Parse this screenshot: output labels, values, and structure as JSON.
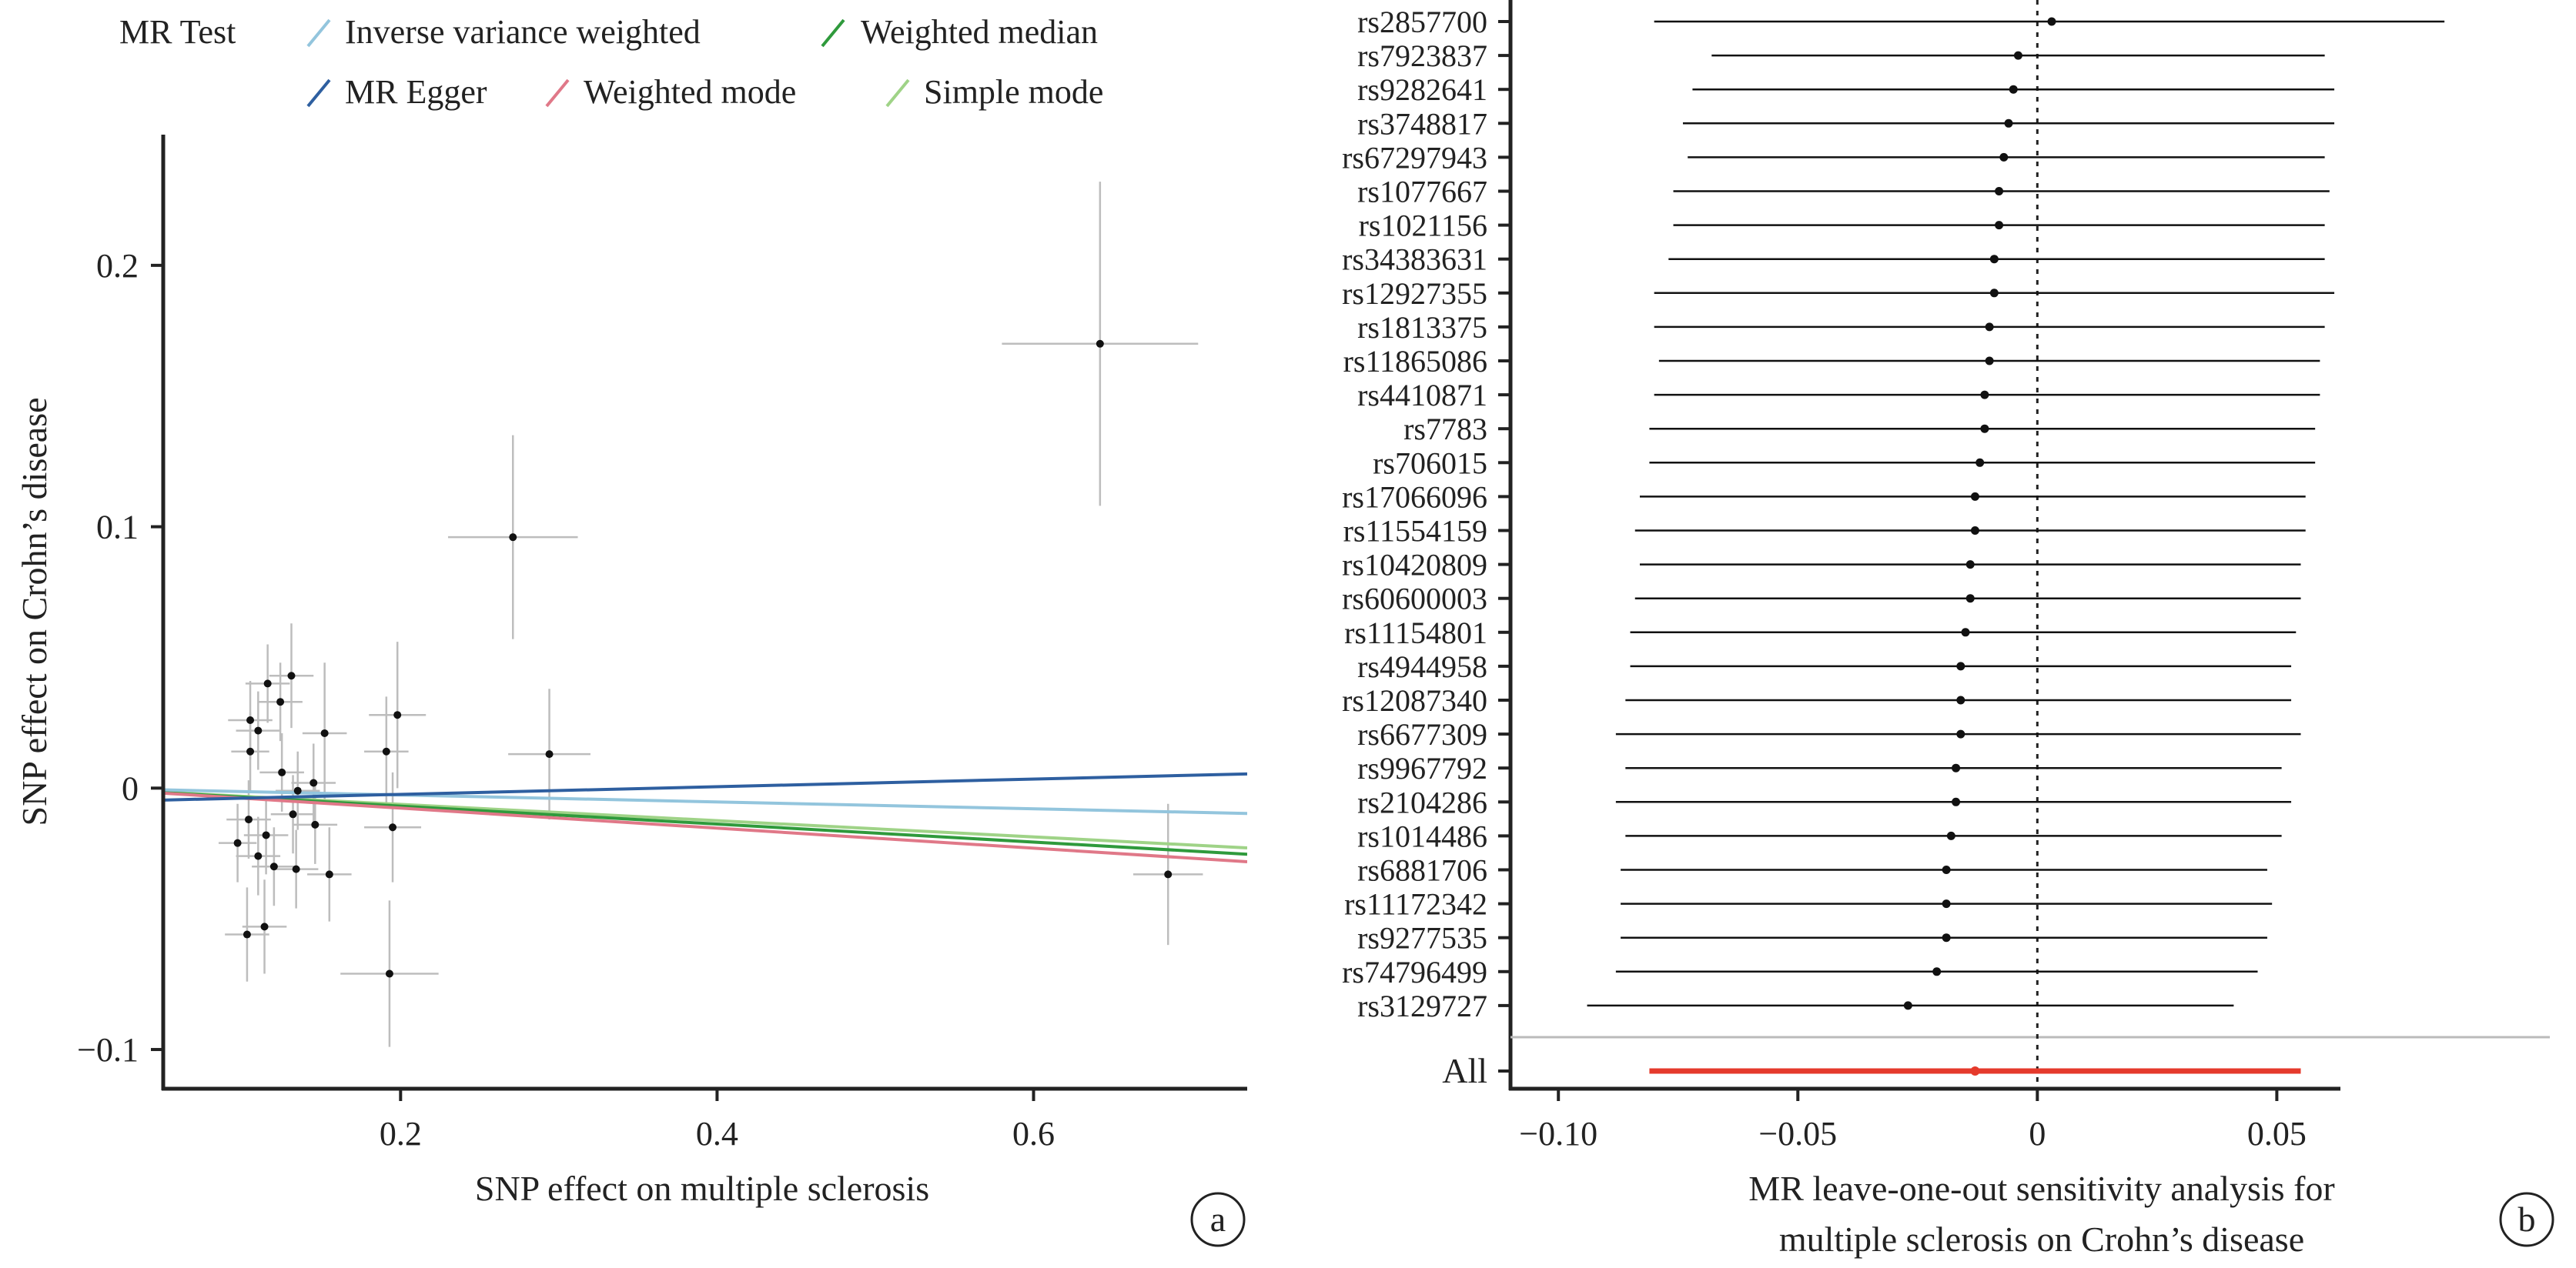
{
  "colors": {
    "ivw": "#93c5dd",
    "egger": "#2e5fa0",
    "wmedian": "#2f9a3c",
    "wmode": "#e07888",
    "smode": "#9fd387",
    "point": "#111111",
    "errorbar": "#bdbdbd",
    "all_line": "#e53a2c"
  },
  "panel_a": {
    "letter": "a",
    "legend": {
      "title": "MR Test",
      "items": [
        {
          "key": "ivw",
          "label": "Inverse variance weighted"
        },
        {
          "key": "wmedian",
          "label": "Weighted median"
        },
        {
          "key": "egger",
          "label": "MR Egger"
        },
        {
          "key": "wmode",
          "label": "Weighted mode"
        },
        {
          "key": "smode",
          "label": "Simple mode"
        }
      ]
    },
    "xlabel": "SNP effect on multiple sclerosis",
    "ylabel": "SNP effect on Crohn’s disease",
    "xticks": [
      "0.2",
      "0.4",
      "0.6"
    ],
    "yticks": [
      "−0.1",
      "0",
      "0.1",
      "0.2"
    ]
  },
  "panel_b": {
    "letter": "b",
    "xlabel_line1": "MR leave-one-out sensitivity analysis for",
    "xlabel_line2": "multiple sclerosis on Crohn’s disease",
    "xticks": [
      "−0.10",
      "−0.05",
      "0",
      "0.05"
    ],
    "all_label": "All"
  },
  "chart_data": [
    {
      "type": "scatter",
      "xlim": [
        0.05,
        0.735
      ],
      "ylim": [
        -0.115,
        0.25
      ],
      "x_ticks": [
        0.2,
        0.4,
        0.6
      ],
      "y_ticks": [
        -0.1,
        0,
        0.1,
        0.2
      ],
      "points": [
        {
          "x": 0.642,
          "y": 0.17,
          "xse": 0.062,
          "yse": 0.062
        },
        {
          "x": 0.685,
          "y": -0.033,
          "xse": 0.022,
          "yse": 0.027
        },
        {
          "x": 0.271,
          "y": 0.096,
          "xse": 0.041,
          "yse": 0.039
        },
        {
          "x": 0.294,
          "y": 0.013,
          "xse": 0.026,
          "yse": 0.025
        },
        {
          "x": 0.193,
          "y": -0.071,
          "xse": 0.031,
          "yse": 0.028
        },
        {
          "x": 0.198,
          "y": 0.028,
          "xse": 0.018,
          "yse": 0.028
        },
        {
          "x": 0.191,
          "y": 0.014,
          "xse": 0.014,
          "yse": 0.021
        },
        {
          "x": 0.195,
          "y": -0.015,
          "xse": 0.018,
          "yse": 0.021
        },
        {
          "x": 0.105,
          "y": 0.026,
          "xse": 0.014,
          "yse": 0.015
        },
        {
          "x": 0.116,
          "y": 0.04,
          "xse": 0.014,
          "yse": 0.015
        },
        {
          "x": 0.11,
          "y": 0.022,
          "xse": 0.014,
          "yse": 0.015
        },
        {
          "x": 0.105,
          "y": 0.014,
          "xse": 0.012,
          "yse": 0.015
        },
        {
          "x": 0.124,
          "y": 0.033,
          "xse": 0.014,
          "yse": 0.015
        },
        {
          "x": 0.131,
          "y": 0.043,
          "xse": 0.014,
          "yse": 0.02
        },
        {
          "x": 0.152,
          "y": 0.021,
          "xse": 0.014,
          "yse": 0.027
        },
        {
          "x": 0.125,
          "y": 0.006,
          "xse": 0.014,
          "yse": 0.015
        },
        {
          "x": 0.135,
          "y": -0.001,
          "xse": 0.014,
          "yse": 0.015
        },
        {
          "x": 0.145,
          "y": 0.002,
          "xse": 0.014,
          "yse": 0.015
        },
        {
          "x": 0.132,
          "y": -0.01,
          "xse": 0.014,
          "yse": 0.015
        },
        {
          "x": 0.146,
          "y": -0.014,
          "xse": 0.014,
          "yse": 0.015
        },
        {
          "x": 0.104,
          "y": -0.012,
          "xse": 0.014,
          "yse": 0.015
        },
        {
          "x": 0.097,
          "y": -0.021,
          "xse": 0.012,
          "yse": 0.015
        },
        {
          "x": 0.115,
          "y": -0.018,
          "xse": 0.014,
          "yse": 0.015
        },
        {
          "x": 0.11,
          "y": -0.026,
          "xse": 0.014,
          "yse": 0.015
        },
        {
          "x": 0.12,
          "y": -0.03,
          "xse": 0.014,
          "yse": 0.015
        },
        {
          "x": 0.134,
          "y": -0.031,
          "xse": 0.014,
          "yse": 0.015
        },
        {
          "x": 0.155,
          "y": -0.033,
          "xse": 0.014,
          "yse": 0.018
        },
        {
          "x": 0.114,
          "y": -0.053,
          "xse": 0.014,
          "yse": 0.018
        },
        {
          "x": 0.103,
          "y": -0.056,
          "xse": 0.014,
          "yse": 0.018
        }
      ],
      "lines": [
        {
          "key": "ivw",
          "slope": -0.0132
        },
        {
          "key": "egger",
          "slope": 0.0146,
          "intercept": -0.0053
        },
        {
          "key": "wmedian",
          "slope": -0.0344
        },
        {
          "key": "wmode",
          "slope": -0.0383
        },
        {
          "key": "smode",
          "slope": -0.0311
        }
      ]
    },
    {
      "type": "forest",
      "xlim": [
        -0.11,
        0.107
      ],
      "x_ticks": [
        -0.1,
        -0.05,
        0,
        0.05
      ],
      "reference_line": 0,
      "rows": [
        {
          "snp": "rs2857700",
          "est": 0.003,
          "lo": -0.08,
          "hi": 0.085
        },
        {
          "snp": "rs7923837",
          "est": -0.004,
          "lo": -0.068,
          "hi": 0.06
        },
        {
          "snp": "rs9282641",
          "est": -0.005,
          "lo": -0.072,
          "hi": 0.062
        },
        {
          "snp": "rs3748817",
          "est": -0.006,
          "lo": -0.074,
          "hi": 0.062
        },
        {
          "snp": "rs67297943",
          "est": -0.007,
          "lo": -0.073,
          "hi": 0.06
        },
        {
          "snp": "rs1077667",
          "est": -0.008,
          "lo": -0.076,
          "hi": 0.061
        },
        {
          "snp": "rs1021156",
          "est": -0.008,
          "lo": -0.076,
          "hi": 0.06
        },
        {
          "snp": "rs34383631",
          "est": -0.009,
          "lo": -0.077,
          "hi": 0.06
        },
        {
          "snp": "rs12927355",
          "est": -0.009,
          "lo": -0.08,
          "hi": 0.062
        },
        {
          "snp": "rs1813375",
          "est": -0.01,
          "lo": -0.08,
          "hi": 0.06
        },
        {
          "snp": "rs11865086",
          "est": -0.01,
          "lo": -0.079,
          "hi": 0.059
        },
        {
          "snp": "rs4410871",
          "est": -0.011,
          "lo": -0.08,
          "hi": 0.059
        },
        {
          "snp": "rs7783",
          "est": -0.011,
          "lo": -0.081,
          "hi": 0.058
        },
        {
          "snp": "rs706015",
          "est": -0.012,
          "lo": -0.081,
          "hi": 0.058
        },
        {
          "snp": "rs17066096",
          "est": -0.013,
          "lo": -0.083,
          "hi": 0.056
        },
        {
          "snp": "rs11554159",
          "est": -0.013,
          "lo": -0.084,
          "hi": 0.056
        },
        {
          "snp": "rs10420809",
          "est": -0.014,
          "lo": -0.083,
          "hi": 0.055
        },
        {
          "snp": "rs60600003",
          "est": -0.014,
          "lo": -0.084,
          "hi": 0.055
        },
        {
          "snp": "rs11154801",
          "est": -0.015,
          "lo": -0.085,
          "hi": 0.054
        },
        {
          "snp": "rs4944958",
          "est": -0.016,
          "lo": -0.085,
          "hi": 0.053
        },
        {
          "snp": "rs12087340",
          "est": -0.016,
          "lo": -0.086,
          "hi": 0.053
        },
        {
          "snp": "rs6677309",
          "est": -0.016,
          "lo": -0.088,
          "hi": 0.055
        },
        {
          "snp": "rs9967792",
          "est": -0.017,
          "lo": -0.086,
          "hi": 0.051
        },
        {
          "snp": "rs2104286",
          "est": -0.017,
          "lo": -0.088,
          "hi": 0.053
        },
        {
          "snp": "rs1014486",
          "est": -0.018,
          "lo": -0.086,
          "hi": 0.051
        },
        {
          "snp": "rs6881706",
          "est": -0.019,
          "lo": -0.087,
          "hi": 0.048
        },
        {
          "snp": "rs11172342",
          "est": -0.019,
          "lo": -0.087,
          "hi": 0.049
        },
        {
          "snp": "rs9277535",
          "est": -0.019,
          "lo": -0.087,
          "hi": 0.048
        },
        {
          "snp": "rs74796499",
          "est": -0.021,
          "lo": -0.088,
          "hi": 0.046
        },
        {
          "snp": "rs3129727",
          "est": -0.027,
          "lo": -0.094,
          "hi": 0.041
        }
      ],
      "overall": {
        "label": "All",
        "est": -0.013,
        "lo": -0.081,
        "hi": 0.055
      }
    }
  ]
}
